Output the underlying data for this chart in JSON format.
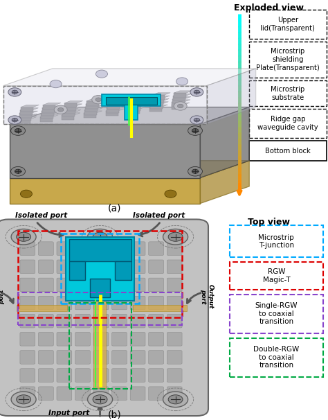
{
  "fig_width": 4.74,
  "fig_height": 6.06,
  "dpi": 100,
  "background": "#ffffff",
  "panel_a": {
    "label": "(a)",
    "title": "Exploded view",
    "legend_items": [
      {
        "text": "Upper\nlid(Transparent)",
        "border": "#000000",
        "linestyle": "--"
      },
      {
        "text": "Microstrip\nshielding\nPlate(Transparent)",
        "border": "#000000",
        "linestyle": "--"
      },
      {
        "text": "Microstrip\nsubstrate",
        "border": "#000000",
        "linestyle": "--"
      },
      {
        "text": "Ridge gap\nwaveguide cavity",
        "border": "#000000",
        "linestyle": "--"
      },
      {
        "text": "Bottom block",
        "border": "#000000",
        "linestyle": "-"
      }
    ]
  },
  "panel_b": {
    "label": "(b)",
    "title": "Top view",
    "legend_items": [
      {
        "text": "Microstrip\nT-junction",
        "border": "#00aaff",
        "linestyle": "--"
      },
      {
        "text": "RGW\nMagic-T",
        "border": "#dd0000",
        "linestyle": "--"
      },
      {
        "text": "Single-RGW\nto coaxial\ntransition",
        "border": "#8844cc",
        "linestyle": "--"
      },
      {
        "text": "Double-RGW\nto coaxial\ntransition",
        "border": "#00aa44",
        "linestyle": "--"
      }
    ]
  }
}
